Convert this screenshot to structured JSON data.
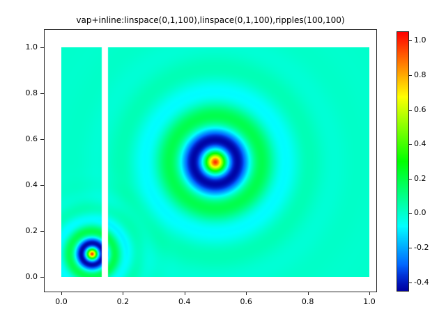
{
  "chart_data": {
    "type": "heatmap",
    "title": "vap+inline:linspace(0,1,100),linspace(0,1,100),ripples(100,100)",
    "function": "ripples",
    "grid_size": [
      100,
      100
    ],
    "x_axis": {
      "range": [
        0,
        1
      ],
      "ticks": [
        0.0,
        0.2,
        0.4,
        0.6,
        0.8,
        1.0
      ],
      "tick_labels": [
        "0.0",
        "0.2",
        "0.4",
        "0.6",
        "0.8",
        "1.0"
      ]
    },
    "y_axis": {
      "range": [
        0,
        1
      ],
      "ticks": [
        0.0,
        0.2,
        0.4,
        0.6,
        0.8,
        1.0
      ],
      "tick_labels": [
        "0.0",
        "0.2",
        "0.4",
        "0.6",
        "0.8",
        "1.0"
      ]
    },
    "background_value": 0.0,
    "ripples": [
      {
        "cx": 0.5,
        "cy": 0.5,
        "amplitude": 1.0,
        "wavelength": 0.157,
        "decay_length": 0.091
      },
      {
        "cx": 0.1,
        "cy": 0.1,
        "amplitude": 1.0,
        "wavelength": 0.077,
        "decay_length": 0.044
      }
    ],
    "missing_band_x": [
      0.131,
      0.152
    ],
    "colormap": {
      "type": "hsv-rainbow",
      "hue_start_deg": 240,
      "hue_end_deg": 0,
      "low_end_darken": true,
      "background_color_hex": "#00ffcc",
      "min_color_hex": "#0000a0",
      "max_color_hex": "#ff2200"
    },
    "colorbar": {
      "range": [
        -0.45,
        1.05
      ],
      "ticks": [
        1.0,
        0.8,
        0.6,
        0.4,
        0.2,
        0.0,
        -0.2,
        -0.4
      ],
      "tick_labels": [
        "1.0",
        "0.8",
        "0.6",
        "0.4",
        "0.2",
        "0.0",
        "-0.2",
        "-0.4"
      ]
    }
  }
}
